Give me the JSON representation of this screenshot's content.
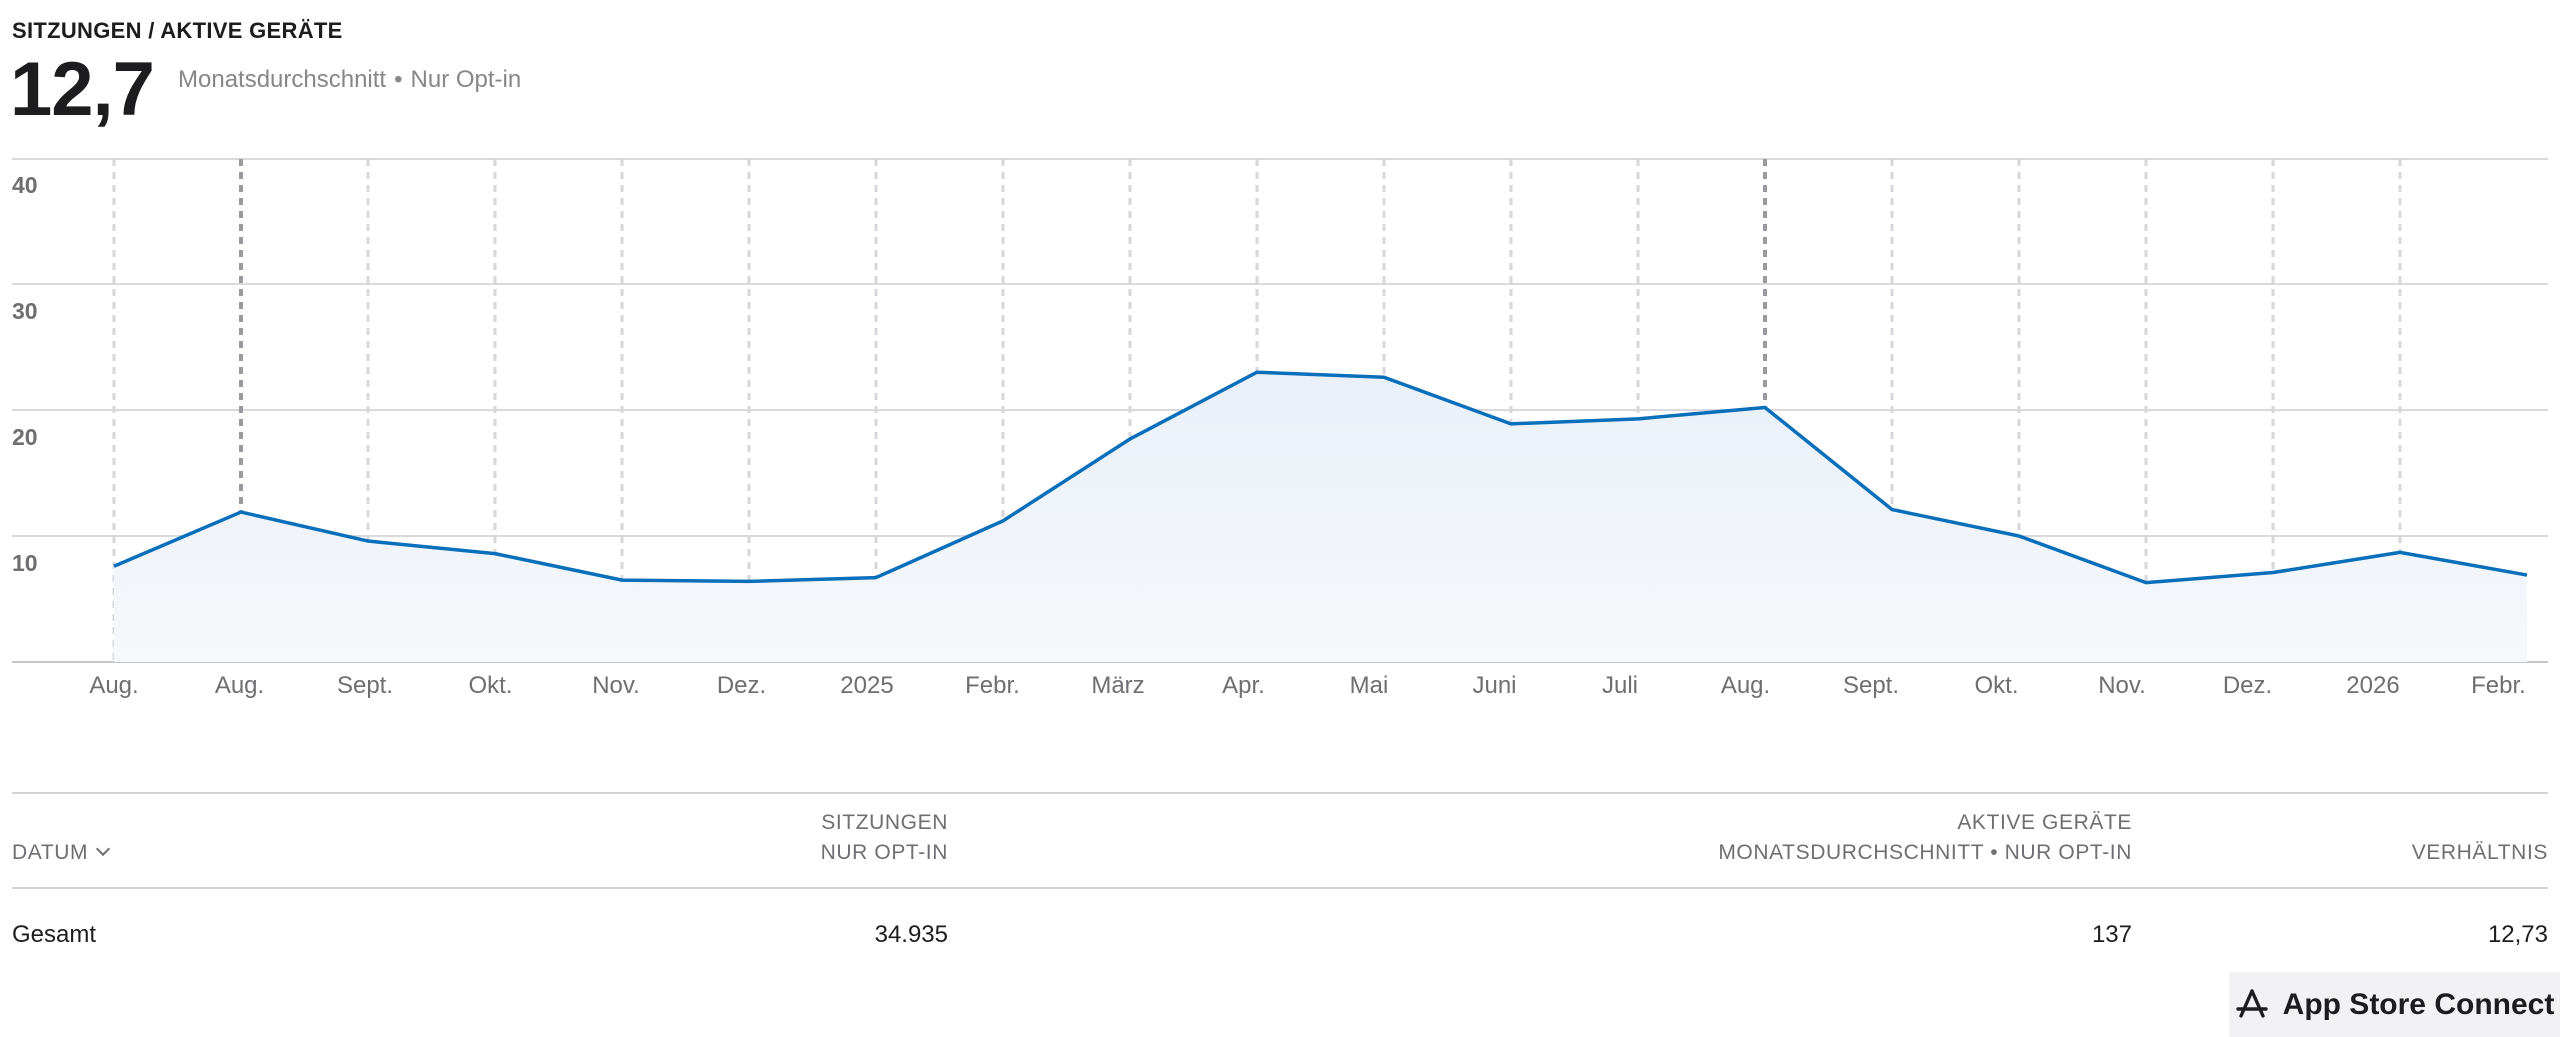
{
  "header": {
    "metric_label": "SITZUNGEN / AKTIVE GERÄTE",
    "value": "12,7",
    "subtitle_part1": "Monatsdurchschnitt",
    "subtitle_separator": "•",
    "subtitle_part2": "Nur Opt-in"
  },
  "chart_data": {
    "type": "area",
    "title": "",
    "xlabel": "",
    "ylabel": "",
    "ylim": [
      0,
      40
    ],
    "y_ticks": [
      10,
      20,
      30,
      40
    ],
    "x_tick_labels": [
      "Aug.",
      "Aug.",
      "Sept.",
      "Okt.",
      "Nov.",
      "Dez.",
      "2025",
      "Febr.",
      "März",
      "Apr.",
      "Mai",
      "Juni",
      "Juli",
      "Aug.",
      "Sept.",
      "Okt.",
      "Nov.",
      "Dez.",
      "2026",
      "Febr."
    ],
    "grid": true,
    "line_color": "#0a6fbb",
    "fill_color": "#eef3f9",
    "series": [
      {
        "values": [
          7.6,
          11.9,
          9.6,
          8.6,
          6.5,
          6.4,
          6.7,
          11.2,
          17.7,
          23.0,
          22.6,
          18.9,
          19.3,
          20.2,
          12.1,
          10.0,
          6.3,
          7.1,
          8.7,
          6.9
        ]
      }
    ]
  },
  "table": {
    "columns": {
      "date": "DATUM",
      "sessions_line1": "SITZUNGEN",
      "sessions_line2": "NUR OPT-IN",
      "devices_line1": "AKTIVE GERÄTE",
      "devices_line2": "MONATSDURCHSCHNITT • NUR OPT-IN",
      "ratio": "VERHÄLTNIS"
    },
    "rows": [
      {
        "label": "Gesamt",
        "sessions": "34.935",
        "devices": "137",
        "ratio": "12,73"
      }
    ]
  },
  "badge": {
    "label": "App Store Connect",
    "icon": "app-store-icon"
  }
}
